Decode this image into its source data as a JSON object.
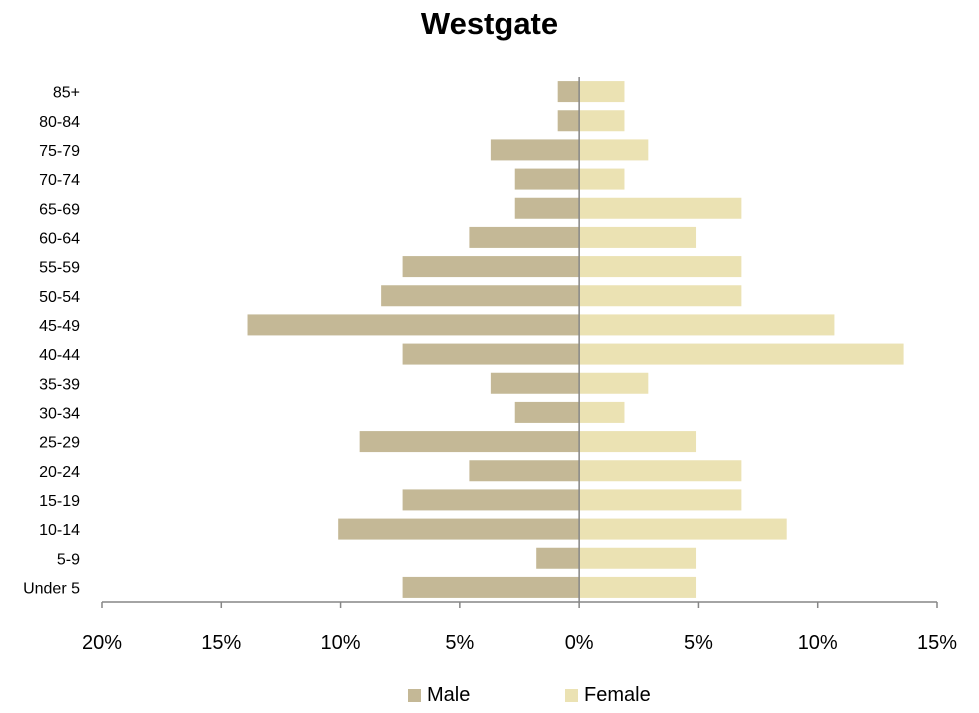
{
  "chart_data": {
    "type": "bar",
    "orientation": "horizontal",
    "subtype": "population-pyramid",
    "title": "Westgate",
    "categories": [
      "Under 5",
      "5-9",
      "10-14",
      "15-19",
      "20-24",
      "25-29",
      "30-34",
      "35-39",
      "40-44",
      "45-49",
      "50-54",
      "55-59",
      "60-64",
      "65-69",
      "70-74",
      "75-79",
      "80-84",
      "85+"
    ],
    "series": [
      {
        "name": "Male",
        "color": "#c4b896",
        "values": [
          7.4,
          1.8,
          10.1,
          7.4,
          4.6,
          9.2,
          2.7,
          3.7,
          7.4,
          13.9,
          8.3,
          7.4,
          4.6,
          2.7,
          2.7,
          3.7,
          0.9,
          0.9
        ]
      },
      {
        "name": "Female",
        "color": "#ebe2b3",
        "values": [
          4.9,
          4.9,
          8.7,
          6.8,
          6.8,
          4.9,
          1.9,
          2.9,
          13.6,
          10.7,
          6.8,
          6.8,
          4.9,
          6.8,
          1.9,
          2.9,
          1.9,
          1.9
        ]
      }
    ],
    "xlim": [
      -20,
      15
    ],
    "x_ticks": [
      -20,
      -15,
      -10,
      -5,
      0,
      5,
      10,
      15
    ],
    "x_tick_labels": [
      "20%",
      "15%",
      "10%",
      "5%",
      "0%",
      "5%",
      "10%",
      "15%"
    ],
    "grid": false,
    "legend_position": "bottom"
  }
}
